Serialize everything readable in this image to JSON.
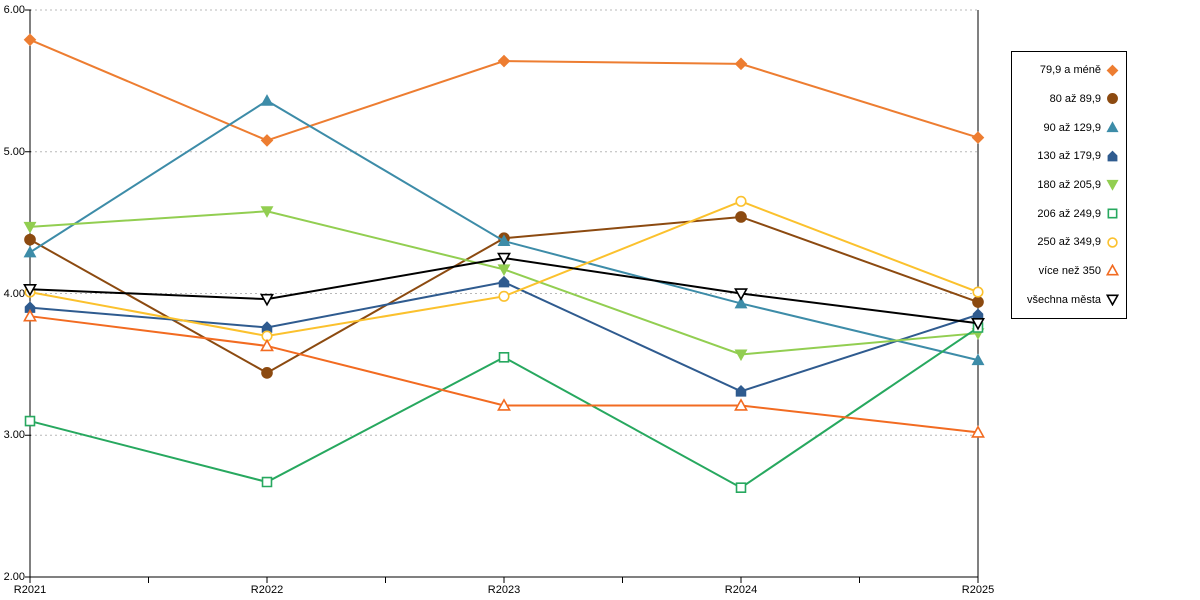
{
  "chart_data": {
    "type": "line",
    "title": "",
    "xlabel": "",
    "ylabel": "",
    "x_categories": [
      "R2021",
      "R2022",
      "R2023",
      "R2024",
      "R2025"
    ],
    "y_axis": {
      "min": 2,
      "max": 6,
      "tick_values": [
        6,
        5,
        4,
        3,
        2
      ],
      "tick_labels": [
        "6.00",
        "5.00",
        "4.00",
        "3.00",
        "2.00"
      ]
    },
    "grid": "horizontal-dashed",
    "legend_position": "right",
    "series": [
      {
        "name": "79,9 a méně",
        "color": "#ED7D31",
        "marker": "diamond",
        "marker_fill": "solid",
        "values": [
          5.79,
          5.08,
          5.64,
          5.62,
          5.1
        ]
      },
      {
        "name": "80 až 89,9",
        "color": "#8C4A10",
        "marker": "circle",
        "marker_fill": "solid",
        "values": [
          4.38,
          3.44,
          4.39,
          4.54,
          3.94
        ]
      },
      {
        "name": "90 až 129,9",
        "color": "#3D8CA8",
        "marker": "triangle-up",
        "marker_fill": "solid",
        "values": [
          4.29,
          5.36,
          4.37,
          3.93,
          3.53
        ]
      },
      {
        "name": "130 až 179,9",
        "color": "#2F5B8F",
        "marker": "pentagon",
        "marker_fill": "solid",
        "values": [
          3.9,
          3.76,
          4.08,
          3.31,
          3.85
        ]
      },
      {
        "name": "180 až 205,9",
        "color": "#92CE51",
        "marker": "triangle-down",
        "marker_fill": "solid",
        "values": [
          4.47,
          4.58,
          4.17,
          3.57,
          3.72
        ]
      },
      {
        "name": "206 až 249,9",
        "color": "#27A85F",
        "marker": "square",
        "marker_fill": "open",
        "values": [
          3.1,
          2.67,
          3.55,
          2.63,
          3.76
        ]
      },
      {
        "name": "250 až 349,9",
        "color": "#FBC12D",
        "marker": "circle",
        "marker_fill": "open",
        "values": [
          4.01,
          3.7,
          3.98,
          4.65,
          4.01
        ]
      },
      {
        "name": "více než 350",
        "color": "#F26B21",
        "marker": "triangle-up",
        "marker_fill": "open",
        "values": [
          3.84,
          3.63,
          3.21,
          3.21,
          3.02
        ]
      },
      {
        "name": "všechna města",
        "color": "#000000",
        "marker": "triangle-down",
        "marker_fill": "open",
        "values": [
          4.03,
          3.96,
          4.25,
          4.0,
          3.79
        ]
      }
    ]
  },
  "colors": {
    "axis": "#000000",
    "gridline": "#b8b8b8",
    "background": "#ffffff"
  }
}
